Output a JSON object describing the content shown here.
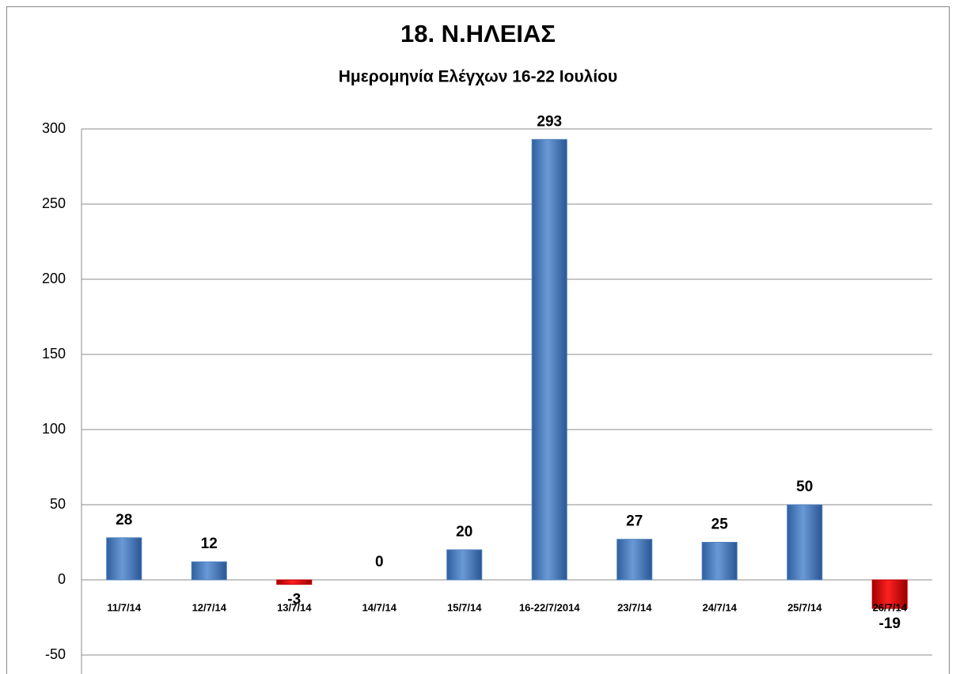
{
  "chart_data": {
    "type": "bar",
    "title": "18.  Ν.ΗΛΕΙΑΣ",
    "subtitle": "Ημερομηνία Ελέγχων 16-22 Ιουλίου",
    "categories": [
      "11/7/14",
      "12/7/14",
      "13/7/14",
      "14/7/14",
      "15/7/14",
      "16-22/7/2014",
      "23/7/14",
      "24/7/14",
      "25/7/14",
      "26/7/14"
    ],
    "values": [
      28,
      12,
      -3,
      0,
      20,
      293,
      27,
      25,
      50,
      -19
    ],
    "color": "#4f81bd",
    "negative_color": "#c00000",
    "ylim": [
      -50,
      300
    ],
    "yticks": [
      -50,
      0,
      50,
      100,
      150,
      200,
      250,
      300
    ],
    "grid": true
  }
}
